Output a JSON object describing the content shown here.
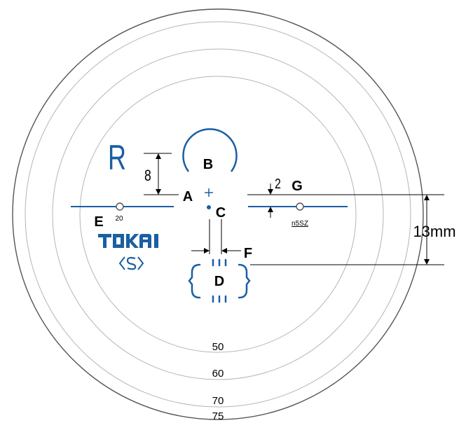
{
  "labels": {
    "a": "A",
    "b": "B",
    "c": "C",
    "d": "D",
    "e": "E",
    "f": "F",
    "g": "G"
  },
  "side_mark": "R",
  "dimensions": {
    "vertical": "8",
    "small_gap": "2",
    "overall": "13mm"
  },
  "mark_left_small": "20",
  "mark_right_small": "n5SZ",
  "brand": {
    "name": "TOKAI",
    "emblem": "S"
  },
  "diameters": [
    "50",
    "60",
    "70",
    "75"
  ],
  "colors": {
    "outline": "#555555",
    "circle_light": "#b5b5b5",
    "marking_blue": "#1a5fa3",
    "label": "#000000"
  },
  "icons": [
    "hidden-mark-circle-icon",
    "tokai-logo-icon"
  ]
}
